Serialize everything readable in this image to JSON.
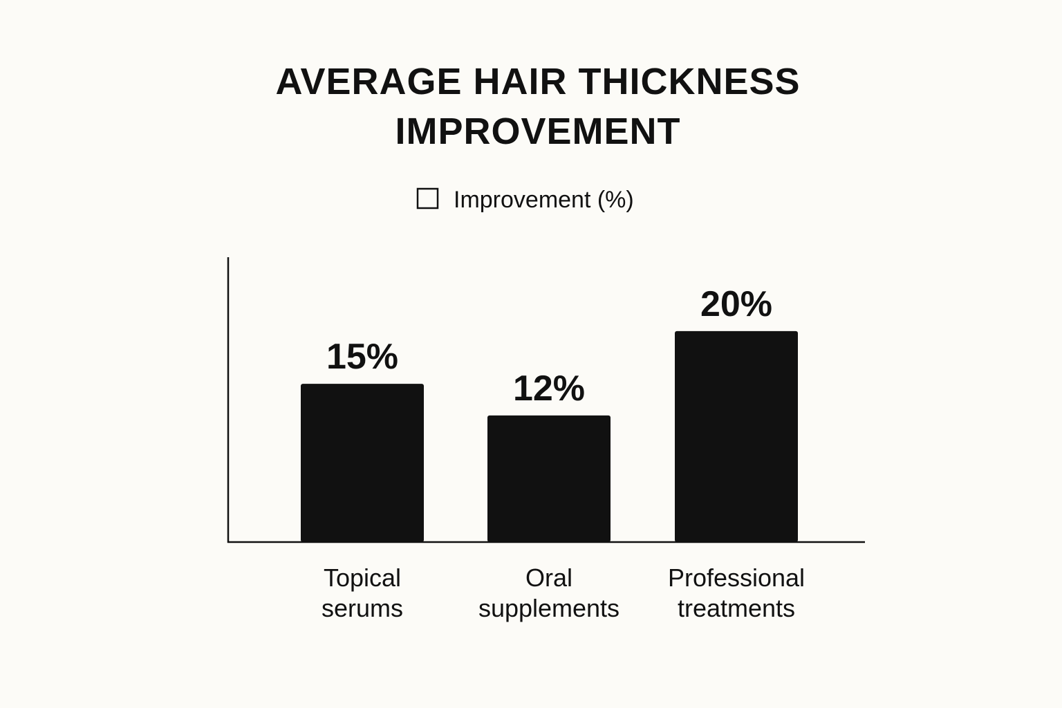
{
  "chart_data": {
    "type": "bar",
    "title": "AVERAGE HAIR THICKNESS IMPROVEMENT",
    "categories": [
      "Topical serums",
      "Oral supplements",
      "Professional treatments"
    ],
    "series": [
      {
        "name": "Improvement (%)",
        "color": "#111111",
        "values": [
          15,
          12,
          20
        ],
        "value_labels": [
          "15%",
          "12%",
          "20%"
        ]
      }
    ],
    "ylim": [
      0,
      27
    ]
  }
}
